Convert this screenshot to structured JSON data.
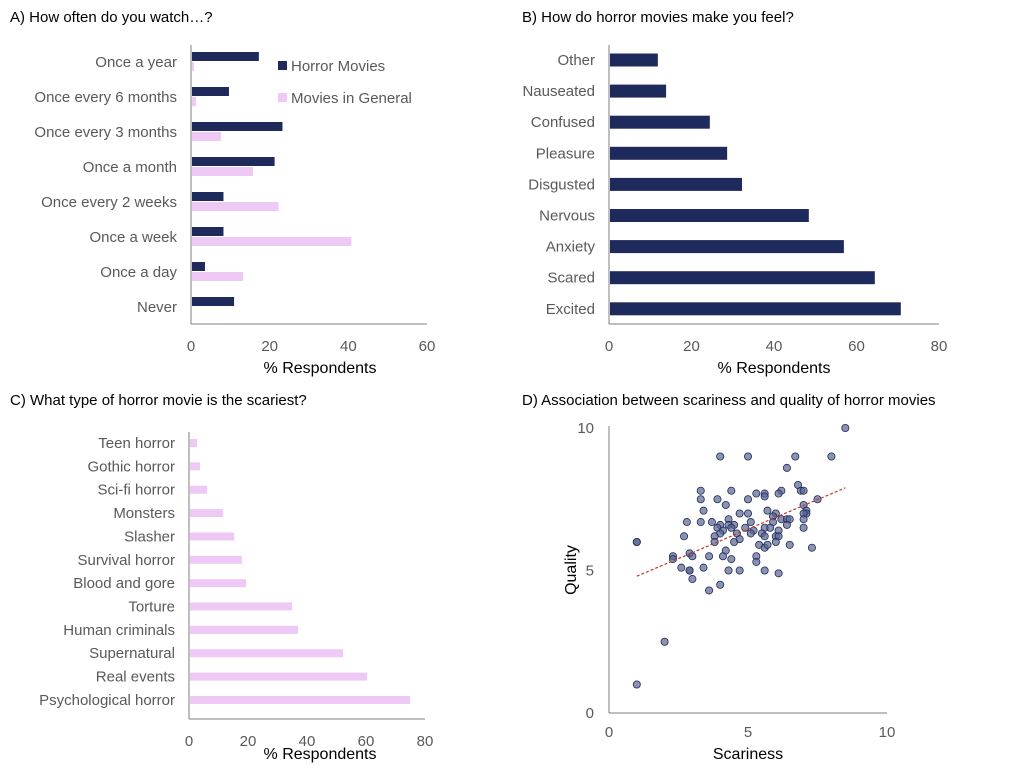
{
  "colors": {
    "horror": "#1f2a5c",
    "general": "#efc9f5",
    "scatter_fill": "#5a6590",
    "trend": "#c0392b"
  },
  "chart_data": [
    {
      "type": "bar",
      "orientation": "horizontal",
      "title": "A) How often do you watch…?",
      "xlabel": "% Respondents",
      "xlim": [
        0,
        60
      ],
      "xticks": [
        0,
        20,
        40,
        60
      ],
      "legend": "top-right",
      "categories": [
        "Once a year",
        "Once every 6 months",
        "Once every 3 months",
        "Once a month",
        "Once every 2 weeks",
        "Once a week",
        "Once a day",
        "Never"
      ],
      "series": [
        {
          "name": "Horror Movies",
          "values": [
            17,
            9.4,
            23,
            21,
            8,
            8,
            3.3,
            10.7
          ]
        },
        {
          "name": "Movies in General",
          "values": [
            0.5,
            1,
            7.4,
            15.5,
            22,
            40.5,
            13,
            0
          ]
        }
      ]
    },
    {
      "type": "bar",
      "orientation": "horizontal",
      "title": "B) How do horror movies make you feel?",
      "xlabel": "% Respondents",
      "xlim": [
        0,
        80
      ],
      "xticks": [
        0,
        20,
        40,
        60,
        80
      ],
      "categories": [
        "Other",
        "Nauseated",
        "Confused",
        "Pleasure",
        "Disgusted",
        "Nervous",
        "Anxiety",
        "Scared",
        "Excited"
      ],
      "values": [
        11.6,
        13.6,
        24.2,
        28.4,
        32,
        48.2,
        56.7,
        64.2,
        70.5
      ]
    },
    {
      "type": "bar",
      "orientation": "horizontal",
      "title": "C) What type of horror movie is the scariest?",
      "xlabel": "% Respondents",
      "xlim": [
        0,
        80
      ],
      "xticks": [
        0,
        20,
        40,
        60,
        80
      ],
      "categories": [
        "Teen horror",
        "Gothic horror",
        "Sci-fi horror",
        "Monsters",
        "Slasher",
        "Survival horror",
        "Blood and gore",
        "Torture",
        "Human criminals",
        "Supernatural",
        "Real events",
        "Psychological horror"
      ],
      "values": [
        2.4,
        3.4,
        5.8,
        11.2,
        15,
        17.6,
        19,
        34.6,
        36.6,
        51.9,
        60,
        74.6
      ]
    },
    {
      "type": "scatter",
      "title": "D) Association between scariness and quality of horror movies",
      "xlabel": "Scariness",
      "ylabel": "Quality",
      "xlim": [
        0,
        10
      ],
      "ylim": [
        0,
        10
      ],
      "xticks": [
        0,
        5,
        10
      ],
      "yticks": [
        0,
        5,
        10
      ],
      "trendline": {
        "style": "dashed",
        "from": [
          1.0,
          4.8
        ],
        "to": [
          8.5,
          7.9
        ]
      },
      "points": [
        [
          8.5,
          10
        ],
        [
          4.0,
          9
        ],
        [
          5.0,
          9
        ],
        [
          6.7,
          9
        ],
        [
          8.0,
          9
        ],
        [
          6.4,
          8.6
        ],
        [
          6.8,
          8
        ],
        [
          6.9,
          7.8
        ],
        [
          7.0,
          7.8
        ],
        [
          3.3,
          7.8
        ],
        [
          4.4,
          7.8
        ],
        [
          6.2,
          7.8
        ],
        [
          6.1,
          7.7
        ],
        [
          5.3,
          7.7
        ],
        [
          5.6,
          7.7
        ],
        [
          5.6,
          7.6
        ],
        [
          3.3,
          7.5
        ],
        [
          3.9,
          7.5
        ],
        [
          5.0,
          7.5
        ],
        [
          7.5,
          7.5
        ],
        [
          4.2,
          7.3
        ],
        [
          7.0,
          7.3
        ],
        [
          3.4,
          7.1
        ],
        [
          5.7,
          7.1
        ],
        [
          7.1,
          7.1
        ],
        [
          7.1,
          7.0
        ],
        [
          7.0,
          7.0
        ],
        [
          4.7,
          7.0
        ],
        [
          5.0,
          7.0
        ],
        [
          6.0,
          7.0
        ],
        [
          5.9,
          6.9
        ],
        [
          4.3,
          6.8
        ],
        [
          6.2,
          6.8
        ],
        [
          6.4,
          6.8
        ],
        [
          6.5,
          6.8
        ],
        [
          7.0,
          6.8
        ],
        [
          2.8,
          6.7
        ],
        [
          3.3,
          6.7
        ],
        [
          3.7,
          6.7
        ],
        [
          5.1,
          6.7
        ],
        [
          5.9,
          6.7
        ],
        [
          4.0,
          6.6
        ],
        [
          4.5,
          6.6
        ],
        [
          4.3,
          6.6
        ],
        [
          6.4,
          6.6
        ],
        [
          3.9,
          6.5
        ],
        [
          4.4,
          6.5
        ],
        [
          4.9,
          6.5
        ],
        [
          5.6,
          6.5
        ],
        [
          5.8,
          6.5
        ],
        [
          7.0,
          6.5
        ],
        [
          4.1,
          6.4
        ],
        [
          5.2,
          6.4
        ],
        [
          6.1,
          6.4
        ],
        [
          4.6,
          6.3
        ],
        [
          5.1,
          6.3
        ],
        [
          5.5,
          6.3
        ],
        [
          4.0,
          6.3
        ],
        [
          2.7,
          6.2
        ],
        [
          3.8,
          6.2
        ],
        [
          5.6,
          6.2
        ],
        [
          6.0,
          6.2
        ],
        [
          6.1,
          6.2
        ],
        [
          1.0,
          6
        ],
        [
          1.0,
          6
        ],
        [
          3.8,
          6
        ],
        [
          4.5,
          6
        ],
        [
          4.7,
          6.1
        ],
        [
          6.0,
          6
        ],
        [
          5.4,
          5.9
        ],
        [
          5.6,
          5.8
        ],
        [
          5.7,
          5.9
        ],
        [
          6.5,
          5.9
        ],
        [
          7.3,
          5.8
        ],
        [
          4.2,
          5.7
        ],
        [
          2.9,
          5.6
        ],
        [
          2.3,
          5.5
        ],
        [
          3.0,
          5.5
        ],
        [
          3.6,
          5.5
        ],
        [
          4.1,
          5.5
        ],
        [
          5.3,
          5.5
        ],
        [
          4.4,
          5.4
        ],
        [
          5.3,
          5.3
        ],
        [
          2.3,
          5.4
        ],
        [
          2.6,
          5.1
        ],
        [
          3.4,
          5.1
        ],
        [
          2.9,
          5.0
        ],
        [
          2.9,
          5.0
        ],
        [
          4.3,
          5.0
        ],
        [
          4.7,
          5.0
        ],
        [
          5.6,
          5.0
        ],
        [
          6.1,
          4.9
        ],
        [
          3.0,
          4.7
        ],
        [
          4.0,
          4.5
        ],
        [
          3.6,
          4.3
        ],
        [
          2.0,
          2.5
        ],
        [
          1.0,
          1.0
        ]
      ]
    }
  ]
}
